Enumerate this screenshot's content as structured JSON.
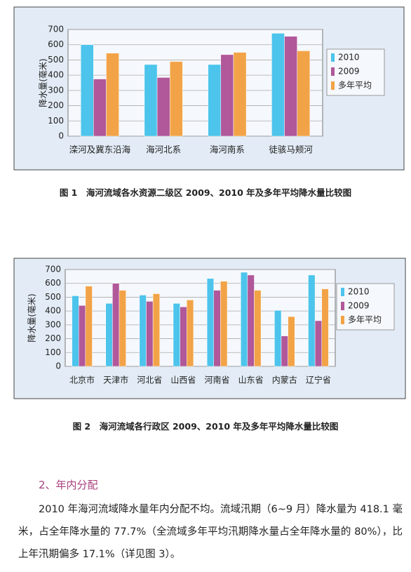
{
  "chart_data": [
    {
      "type": "bar",
      "y_label": "降水量(毫米)",
      "categories": [
        "滦河及冀东沿海",
        "海河北系",
        "海河南系",
        "徒骇马颊河"
      ],
      "series": [
        {
          "name": "2010",
          "color": "#4cc4ec",
          "values": [
            600,
            470,
            470,
            675
          ]
        },
        {
          "name": "2009",
          "color": "#b0589a",
          "values": [
            375,
            385,
            535,
            655
          ]
        },
        {
          "name": "多年平均",
          "color": "#f2a348",
          "values": [
            545,
            490,
            550,
            560
          ]
        }
      ],
      "ylim": [
        0,
        700
      ],
      "yticks": [
        0,
        100,
        200,
        300,
        400,
        500,
        600,
        700
      ],
      "grid": true,
      "legend": "right",
      "caption": "图 1　海河流域各水资源二级区 2009、2010 年及多年平均降水量比较图"
    },
    {
      "type": "bar",
      "y_label": "降水量(毫米)",
      "categories": [
        "北京市",
        "天津市",
        "河北省",
        "山西省",
        "河南省",
        "山东省",
        "内蒙古",
        "辽宁省"
      ],
      "series": [
        {
          "name": "2010",
          "color": "#4cc4ec",
          "values": [
            510,
            455,
            515,
            455,
            635,
            680,
            405,
            660
          ]
        },
        {
          "name": "2009",
          "color": "#b0589a",
          "values": [
            440,
            600,
            470,
            430,
            550,
            660,
            220,
            330
          ]
        },
        {
          "name": "多年平均",
          "color": "#f2a348",
          "values": [
            580,
            550,
            525,
            480,
            615,
            550,
            360,
            560
          ]
        }
      ],
      "ylim": [
        0,
        700
      ],
      "yticks": [
        0,
        100,
        200,
        300,
        400,
        500,
        600,
        700
      ],
      "grid": true,
      "legend": "right",
      "caption": "图 2　海河流域各行政区 2009、2010 年及多年平均降水量比较图"
    }
  ],
  "section": {
    "heading": "2、年内分配",
    "paragraph": "2010 年海河流域降水量年内分配不均。流域汛期（6~9 月）降水量为 418.1 毫米，占全年降水量的 77.7%（全流域多年平均汛期降水量占全年降水量的 80%），比上年汛期偏多 17.1%（详见图 3）。"
  }
}
